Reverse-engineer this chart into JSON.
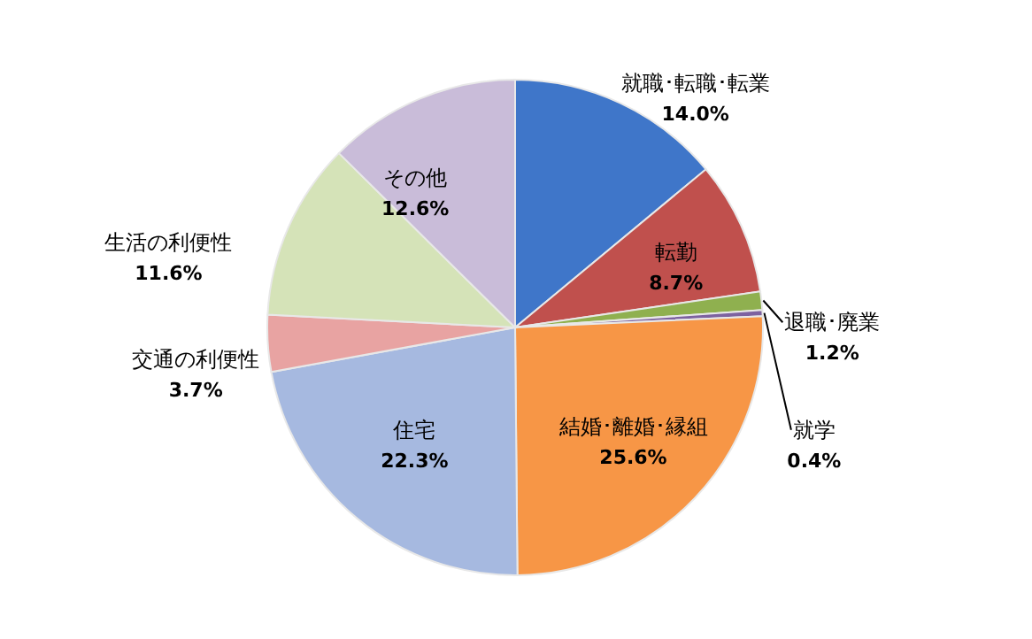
{
  "chart_data": {
    "type": "pie",
    "categories": [
      "就職･転職･転業",
      "転勤",
      "退職･廃業",
      "就学",
      "結婚･離婚･縁組",
      "住宅",
      "交通の利便性",
      "生活の利便性",
      "その他"
    ],
    "values": [
      14.0,
      8.7,
      1.2,
      0.4,
      25.6,
      22.3,
      3.7,
      11.6,
      12.6
    ],
    "colors": [
      "#3f76c9",
      "#c0504d",
      "#8fb04f",
      "#7d62a0",
      "#f79646",
      "#a6b9e0",
      "#e8a3a2",
      "#d5e3b8",
      "#c9bcd9"
    ],
    "value_labels": [
      "14.0%",
      "8.7%",
      "1.2%",
      "0.4%",
      "25.6%",
      "22.3%",
      "3.7%",
      "11.6%",
      "12.6%"
    ]
  }
}
